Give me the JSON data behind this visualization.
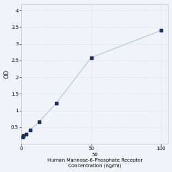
{
  "x_data": [
    0.781,
    1.563,
    3.125,
    6.25,
    12.5,
    25,
    50,
    100
  ],
  "y_data": [
    0.214,
    0.241,
    0.291,
    0.418,
    0.655,
    1.228,
    2.589,
    3.402
  ],
  "line_color": "#aac8dc",
  "marker_color": "#1a3060",
  "marker_size": 12,
  "xlabel_line1": "Human Mannose-6-Phosphate Receptor",
  "xlabel_line2": "Concentration (ng/ml)",
  "xlabel_mid": "50",
  "ylabel": "OD",
  "xlim": [
    0,
    105
  ],
  "ylim": [
    0,
    4.2
  ],
  "yticks": [
    0.5,
    1.0,
    1.5,
    2.0,
    2.5,
    3.0,
    3.5,
    4.0
  ],
  "ytick_labels": [
    "0.5",
    "1",
    "1.5",
    "2",
    "2.5",
    "3",
    "3.5",
    "4"
  ],
  "xticks": [
    0,
    50,
    100
  ],
  "xtick_labels": [
    "0",
    "50",
    "100"
  ],
  "grid_color": "#d4dde6",
  "background_color": "#f0f4f8",
  "axis_fontsize": 5,
  "label_fontsize": 5
}
